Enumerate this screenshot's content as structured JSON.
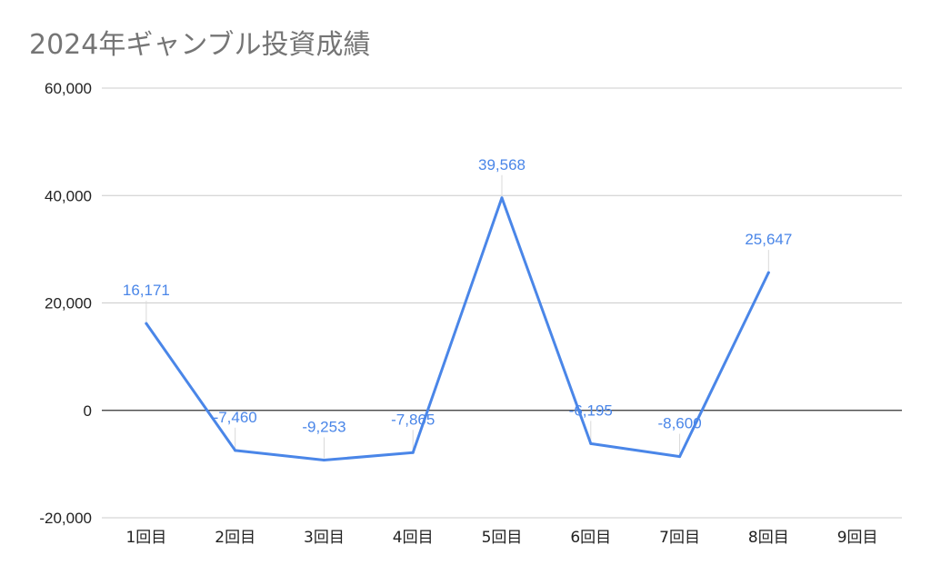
{
  "chart_data": {
    "type": "line",
    "title": "2024年ギャンブル投資成績",
    "xlabel": "",
    "ylabel": "",
    "categories": [
      "1回目",
      "2回目",
      "3回目",
      "4回目",
      "5回目",
      "6回目",
      "7回目",
      "8回目",
      "9回目"
    ],
    "series": [
      {
        "values": [
          16171,
          -7460,
          -9253,
          -7865,
          39568,
          -6195,
          -8600,
          25647,
          null
        ],
        "data_labels": [
          "16,171",
          "-7,460",
          "-9,253",
          "-7,865",
          "39,568",
          "-6,195",
          "-8,600",
          "25,647",
          ""
        ]
      }
    ],
    "ylim": [
      -20000,
      60000
    ],
    "yticks": [
      60000,
      40000,
      20000,
      0,
      -20000
    ],
    "ytick_labels": [
      "60,000",
      "40,000",
      "20,000",
      "0",
      "-20,000"
    ],
    "grid": true,
    "legend": "none",
    "colors": {
      "line": "#4a86e8",
      "label": "#4a86e8",
      "grid": "#cccccc",
      "zero_line": "#333333",
      "title": "#757575",
      "axis_text": "#222222"
    }
  }
}
